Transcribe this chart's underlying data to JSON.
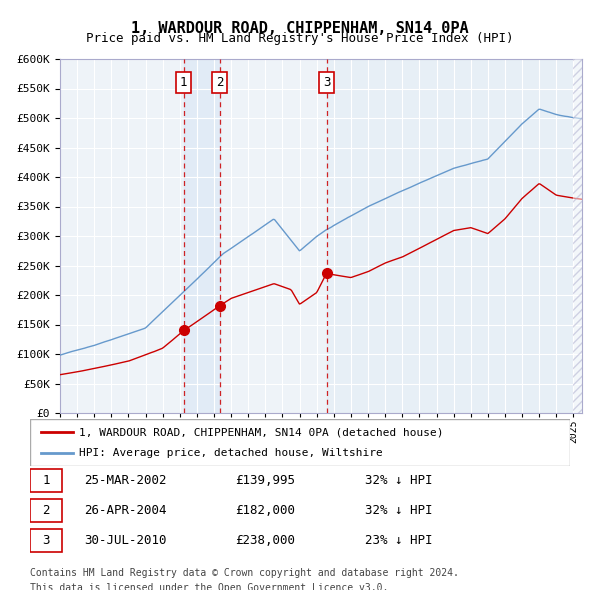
{
  "title": "1, WARDOUR ROAD, CHIPPENHAM, SN14 0PA",
  "subtitle": "Price paid vs. HM Land Registry's House Price Index (HPI)",
  "legend_line1": "1, WARDOUR ROAD, CHIPPENHAM, SN14 0PA (detached house)",
  "legend_line2": "HPI: Average price, detached house, Wiltshire",
  "hpi_color": "#6699cc",
  "price_color": "#cc0000",
  "plot_bg": "#eef3f8",
  "dashed_color": "#cc0000",
  "sale_dates": [
    2002.23,
    2004.32,
    2010.58
  ],
  "sale_prices": [
    139995,
    182000,
    238000
  ],
  "sale_labels": [
    "1",
    "2",
    "3"
  ],
  "sale_info": [
    [
      "1",
      "25-MAR-2002",
      "£139,995",
      "32% ↓ HPI"
    ],
    [
      "2",
      "26-APR-2004",
      "£182,000",
      "32% ↓ HPI"
    ],
    [
      "3",
      "30-JUL-2010",
      "£238,000",
      "23% ↓ HPI"
    ]
  ],
  "footer1": "Contains HM Land Registry data © Crown copyright and database right 2024.",
  "footer2": "This data is licensed under the Open Government Licence v3.0.",
  "ylim": [
    0,
    600000
  ],
  "yticks": [
    0,
    50000,
    100000,
    150000,
    200000,
    250000,
    300000,
    350000,
    400000,
    450000,
    500000,
    550000,
    600000
  ],
  "xlim_start": 1995.0,
  "xlim_end": 2025.5
}
